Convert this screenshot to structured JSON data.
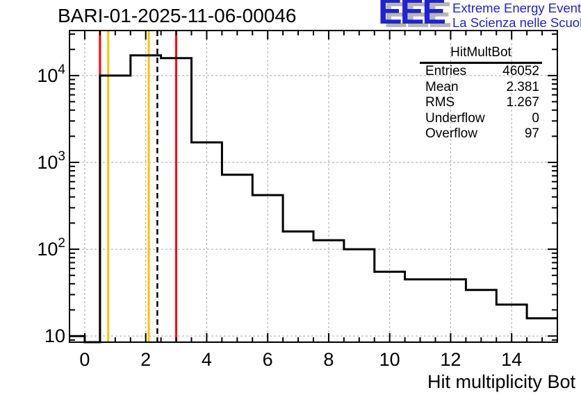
{
  "header": {
    "title": "BARI-01-2025-11-06-00046"
  },
  "logo": {
    "letters": "EEE",
    "line1": "Extreme Energy Events",
    "line2": "La Scienza nelle Scuole",
    "text_color": "#2222d2",
    "shadow_color": "#b5b5b5"
  },
  "stats": {
    "title": "HitMultBot",
    "rows": [
      {
        "label": "Entries",
        "value": "46052"
      },
      {
        "label": "Mean",
        "value": "2.381"
      },
      {
        "label": "RMS",
        "value": "1.267"
      },
      {
        "label": "Underflow",
        "value": "0"
      },
      {
        "label": "Overflow",
        "value": "97"
      }
    ]
  },
  "axes": {
    "x_title": "Hit multiplicity Bot",
    "x_range": [
      -0.5,
      15.5
    ],
    "y_range": [
      8.5,
      33000
    ],
    "y_scale": "log",
    "x_major_ticks": [
      0,
      2,
      4,
      6,
      8,
      10,
      12,
      14
    ],
    "x_minor_step": 0.5,
    "y_major_ticks": [
      10,
      100,
      1000,
      10000
    ],
    "y_tick_labels": [
      {
        "base": "10",
        "exp": ""
      },
      {
        "base": "10",
        "exp": "2"
      },
      {
        "base": "10",
        "exp": "3"
      },
      {
        "base": "10",
        "exp": "4"
      }
    ]
  },
  "chart_data": {
    "type": "bar",
    "subtype": "step-histogram",
    "title": "BARI-01-2025-11-06-00046",
    "xlabel": "Hit multiplicity Bot",
    "ylabel": "",
    "histogram_name": "HitMultBot",
    "entries": 46052,
    "mean": 2.381,
    "rms": 1.267,
    "underflow": 0,
    "overflow": 97,
    "y_log": true,
    "grid": true,
    "xlim": [
      -0.5,
      15.5
    ],
    "ylim": [
      8.5,
      33000
    ],
    "bin_centers": [
      0,
      1,
      2,
      3,
      4,
      5,
      6,
      7,
      8,
      9,
      10,
      11,
      12,
      13,
      14,
      15
    ],
    "values": [
      10,
      10000,
      17100,
      15900,
      1700,
      720,
      420,
      160,
      127,
      100,
      55,
      45,
      45,
      34,
      23,
      16
    ],
    "steps": [
      {
        "from": -0.5,
        "to": 0,
        "value": 10
      },
      {
        "from": 0,
        "to": 0.5,
        "value": null
      },
      {
        "from": 0.5,
        "to": 1.5,
        "value": 10000
      },
      {
        "from": 1.5,
        "to": 2.5,
        "value": 17100
      },
      {
        "from": 2.5,
        "to": 3.5,
        "value": 15900
      },
      {
        "from": 3.5,
        "to": 4.5,
        "value": 1700
      },
      {
        "from": 4.5,
        "to": 5.5,
        "value": 720
      },
      {
        "from": 5.5,
        "to": 6.5,
        "value": 420
      },
      {
        "from": 6.5,
        "to": 7.5,
        "value": 160
      },
      {
        "from": 7.5,
        "to": 8.5,
        "value": 127
      },
      {
        "from": 8.5,
        "to": 9.5,
        "value": 100
      },
      {
        "from": 9.5,
        "to": 10.5,
        "value": 55
      },
      {
        "from": 10.5,
        "to": 12.5,
        "value": 45
      },
      {
        "from": 12.5,
        "to": 13.5,
        "value": 34
      },
      {
        "from": 13.5,
        "to": 14.5,
        "value": 23
      },
      {
        "from": 14.5,
        "to": 15.5,
        "value": 16
      }
    ],
    "marker_lines": [
      {
        "x": 0.5,
        "color": "#ff0000",
        "style": "solid"
      },
      {
        "x": 0.77,
        "color": "#fdc300",
        "style": "solid"
      },
      {
        "x": 2.1,
        "color": "#fdc300",
        "style": "solid"
      },
      {
        "x": 2.381,
        "color": "#000000",
        "style": "dashed"
      },
      {
        "x": 3.0,
        "color": "#ff0000",
        "style": "solid"
      }
    ],
    "line_color": "#000000",
    "grid_color": "#a6a6a6",
    "frame_color": "#000000"
  }
}
